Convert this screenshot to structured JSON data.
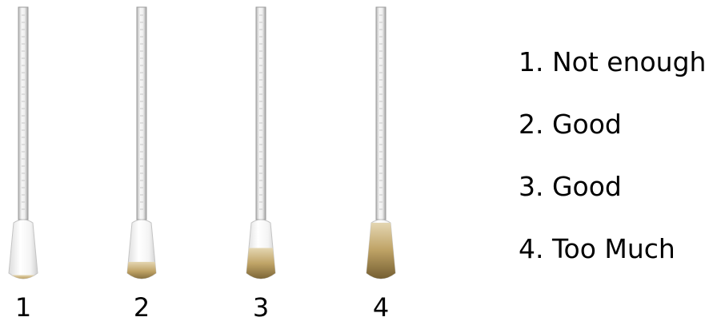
{
  "swabs": [
    {
      "label": "1",
      "fill_level": 0.12
    },
    {
      "label": "2",
      "fill_level": 0.33
    },
    {
      "label": "3",
      "fill_level": 0.55
    },
    {
      "label": "4",
      "fill_level": 0.95
    }
  ],
  "legend": [
    "1. Not enough",
    "2. Good",
    "3. Good",
    "4. Too Much"
  ],
  "colors": {
    "fill_light": "#e2d2ab",
    "fill_mid": "#b89a5c",
    "fill_dark": "#6f5a2a",
    "tip_white": "#f4f4f4",
    "stick": "#e9e9e9",
    "stick_edge": "#a9a9a9"
  }
}
